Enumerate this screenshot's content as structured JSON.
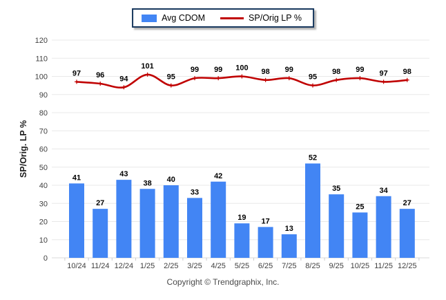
{
  "legend": {
    "bar_label": "Avg CDOM",
    "line_label": "SP/Orig LP %"
  },
  "footer": {
    "text": "Copyright © Trendgraphix, Inc."
  },
  "chart_data": {
    "type": "bar+line",
    "title": "",
    "ylabel": "SP/Orig. LP %",
    "xlabel": "",
    "ylim": [
      0,
      120
    ],
    "ytick_step": 10,
    "grid": "horizontal",
    "legend_position": "top-center",
    "categories": [
      "10/24",
      "11/24",
      "12/24",
      "1/25",
      "2/25",
      "3/25",
      "4/25",
      "5/25",
      "6/25",
      "7/25",
      "8/25",
      "9/25",
      "10/25",
      "11/25",
      "12/25"
    ],
    "series": [
      {
        "name": "Avg CDOM",
        "type": "bar",
        "color": "#4285f4",
        "values": [
          41,
          27,
          43,
          38,
          40,
          33,
          42,
          19,
          17,
          13,
          52,
          35,
          25,
          34,
          27
        ]
      },
      {
        "name": "SP/Orig LP %",
        "type": "line",
        "color": "#c00000",
        "values": [
          97,
          96,
          94,
          101,
          95,
          99,
          99,
          100,
          98,
          99,
          95,
          98,
          99,
          97,
          98
        ]
      }
    ],
    "colors": {
      "grid": "#e8e8e8",
      "baseline": "#d9d9d9",
      "tick": "#cccccc",
      "axis_text": "#404040",
      "data_label": "#000000"
    }
  }
}
